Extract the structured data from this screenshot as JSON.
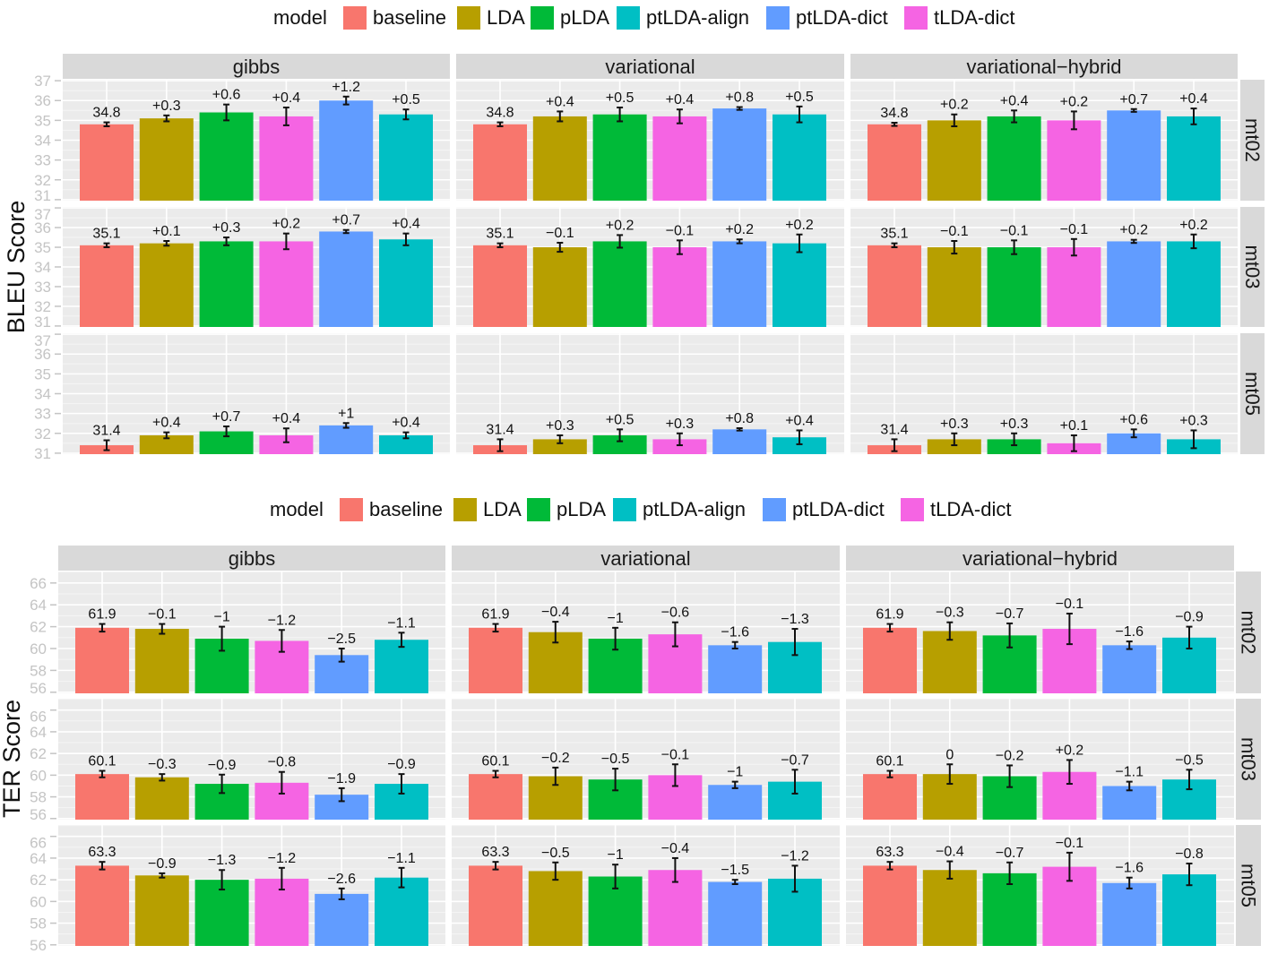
{
  "chart_data": [
    {
      "type": "bar",
      "ylabel": "BLEU Score",
      "ylim": [
        30.95,
        37.05
      ],
      "yticks": [
        31,
        32,
        33,
        34,
        35,
        36,
        37
      ],
      "grid": true,
      "legend": {
        "title": "model",
        "placement": "top",
        "entries": [
          "baseline",
          "LDA",
          "pLDA",
          "ptLDA-align",
          "ptLDA-dict",
          "tLDA-dict"
        ]
      },
      "colors": {
        "baseline": "#F8766D",
        "LDA": "#B79F00",
        "pLDA": "#00BA38",
        "ptLDA-align": "#00BFC4",
        "ptLDA-dict": "#619CFF",
        "tLDA-dict": "#F564E3"
      },
      "x_order": [
        "baseline",
        "LDA",
        "pLDA",
        "tLDA-dict",
        "ptLDA-dict",
        "ptLDA-align"
      ],
      "columns": [
        "gibbs",
        "variational",
        "variational−hybrid"
      ],
      "rows": [
        "mt02",
        "mt03",
        "mt05"
      ],
      "panels": [
        {
          "column": 0,
          "row": 0,
          "values": [
            34.8,
            35.1,
            35.4,
            35.2,
            36.0,
            35.3
          ],
          "errors": [
            0.1,
            0.15,
            0.4,
            0.45,
            0.2,
            0.25
          ],
          "labels": [
            "34.8",
            "+0.3",
            "+0.6",
            "+0.4",
            "+1.2",
            "+0.5"
          ]
        },
        {
          "column": 1,
          "row": 0,
          "values": [
            34.8,
            35.2,
            35.3,
            35.2,
            35.6,
            35.3
          ],
          "errors": [
            0.1,
            0.25,
            0.35,
            0.35,
            0.07,
            0.4
          ],
          "labels": [
            "34.8",
            "+0.4",
            "+0.5",
            "+0.4",
            "+0.8",
            "+0.5"
          ]
        },
        {
          "column": 2,
          "row": 0,
          "values": [
            34.8,
            35.0,
            35.2,
            35.0,
            35.5,
            35.2
          ],
          "errors": [
            0.08,
            0.3,
            0.3,
            0.45,
            0.07,
            0.4
          ],
          "labels": [
            "34.8",
            "+0.2",
            "+0.4",
            "+0.2",
            "+0.7",
            "+0.4"
          ]
        },
        {
          "column": 0,
          "row": 1,
          "values": [
            35.1,
            35.2,
            35.3,
            35.3,
            35.8,
            35.4
          ],
          "errors": [
            0.1,
            0.12,
            0.2,
            0.4,
            0.08,
            0.3
          ],
          "labels": [
            "35.1",
            "+0.1",
            "+0.3",
            "+0.2",
            "+0.7",
            "+0.4"
          ]
        },
        {
          "column": 1,
          "row": 1,
          "values": [
            35.1,
            35.0,
            35.3,
            35.0,
            35.3,
            35.2
          ],
          "errors": [
            0.1,
            0.23,
            0.32,
            0.35,
            0.1,
            0.45
          ],
          "labels": [
            "35.1",
            "−0.1",
            "+0.2",
            "−0.1",
            "+0.2",
            "+0.2"
          ]
        },
        {
          "column": 2,
          "row": 1,
          "values": [
            35.1,
            35.0,
            35.0,
            35.0,
            35.3,
            35.3
          ],
          "errors": [
            0.1,
            0.32,
            0.35,
            0.42,
            0.08,
            0.35
          ],
          "labels": [
            "35.1",
            "−0.1",
            "−0.1",
            "−0.1",
            "+0.2",
            "+0.2"
          ]
        },
        {
          "column": 0,
          "row": 2,
          "values": [
            31.4,
            31.9,
            32.1,
            31.9,
            32.4,
            31.9
          ],
          "errors": [
            0.25,
            0.15,
            0.25,
            0.35,
            0.12,
            0.15
          ],
          "labels": [
            "31.4",
            "+0.4",
            "+0.7",
            "+0.4",
            "+1",
            "+0.4"
          ]
        },
        {
          "column": 1,
          "row": 2,
          "values": [
            31.4,
            31.7,
            31.9,
            31.7,
            32.2,
            31.8
          ],
          "errors": [
            0.3,
            0.2,
            0.3,
            0.3,
            0.06,
            0.35
          ],
          "labels": [
            "31.4",
            "+0.3",
            "+0.5",
            "+0.3",
            "+0.8",
            "+0.4"
          ]
        },
        {
          "column": 2,
          "row": 2,
          "values": [
            31.4,
            31.7,
            31.7,
            31.5,
            32.0,
            31.7
          ],
          "errors": [
            0.3,
            0.3,
            0.3,
            0.4,
            0.2,
            0.45
          ],
          "labels": [
            "31.4",
            "+0.3",
            "+0.3",
            "+0.1",
            "+0.6",
            "+0.3"
          ]
        }
      ]
    },
    {
      "type": "bar",
      "ylabel": "TER Score",
      "ylim": [
        55.9,
        67.05
      ],
      "yticks": [
        56,
        58,
        60,
        62,
        64,
        66
      ],
      "grid": true,
      "legend": {
        "title": "model",
        "placement": "top",
        "entries": [
          "baseline",
          "LDA",
          "pLDA",
          "ptLDA-align",
          "ptLDA-dict",
          "tLDA-dict"
        ]
      },
      "colors": {
        "baseline": "#F8766D",
        "LDA": "#B79F00",
        "pLDA": "#00BA38",
        "ptLDA-align": "#00BFC4",
        "ptLDA-dict": "#619CFF",
        "tLDA-dict": "#F564E3"
      },
      "x_order": [
        "baseline",
        "LDA",
        "pLDA",
        "tLDA-dict",
        "ptLDA-dict",
        "ptLDA-align"
      ],
      "columns": [
        "gibbs",
        "variational",
        "variational−hybrid"
      ],
      "rows": [
        "mt02",
        "mt03",
        "mt05"
      ],
      "panels": [
        {
          "column": 0,
          "row": 0,
          "values": [
            61.9,
            61.8,
            60.9,
            60.7,
            59.4,
            60.8
          ],
          "errors": [
            0.35,
            0.45,
            1.1,
            1.0,
            0.6,
            0.65
          ],
          "labels": [
            "61.9",
            "−0.1",
            "−1",
            "−1.2",
            "−2.5",
            "−1.1"
          ]
        },
        {
          "column": 1,
          "row": 0,
          "values": [
            61.9,
            61.5,
            60.9,
            61.3,
            60.3,
            60.6
          ],
          "errors": [
            0.35,
            0.95,
            1.0,
            1.1,
            0.3,
            1.2
          ],
          "labels": [
            "61.9",
            "−0.4",
            "−1",
            "−0.6",
            "−1.6",
            "−1.3"
          ]
        },
        {
          "column": 2,
          "row": 0,
          "values": [
            61.9,
            61.6,
            61.2,
            61.8,
            60.3,
            61.0
          ],
          "errors": [
            0.35,
            0.8,
            1.1,
            1.4,
            0.35,
            1.0
          ],
          "labels": [
            "61.9",
            "−0.3",
            "−0.7",
            "−0.1",
            "−1.6",
            "−0.9"
          ]
        },
        {
          "column": 0,
          "row": 1,
          "values": [
            60.1,
            59.8,
            59.2,
            59.3,
            58.2,
            59.2
          ],
          "errors": [
            0.3,
            0.3,
            0.85,
            1.0,
            0.6,
            0.9
          ],
          "labels": [
            "60.1",
            "−0.3",
            "−0.9",
            "−0.8",
            "−1.9",
            "−0.9"
          ]
        },
        {
          "column": 1,
          "row": 1,
          "values": [
            60.1,
            59.9,
            59.6,
            60.0,
            59.1,
            59.4
          ],
          "errors": [
            0.3,
            0.8,
            1.0,
            1.0,
            0.3,
            1.1
          ],
          "labels": [
            "60.1",
            "−0.2",
            "−0.5",
            "−0.1",
            "−1",
            "−0.7"
          ]
        },
        {
          "column": 2,
          "row": 1,
          "values": [
            60.1,
            60.1,
            59.9,
            60.3,
            59.0,
            59.6
          ],
          "errors": [
            0.3,
            0.9,
            1.0,
            1.1,
            0.4,
            0.9
          ],
          "labels": [
            "60.1",
            "0",
            "−0.2",
            "+0.2",
            "−1.1",
            "−0.5"
          ]
        },
        {
          "column": 0,
          "row": 2,
          "values": [
            63.3,
            62.4,
            62.0,
            62.1,
            60.7,
            62.2
          ],
          "errors": [
            0.35,
            0.2,
            0.9,
            1.0,
            0.5,
            0.9
          ],
          "labels": [
            "63.3",
            "−0.9",
            "−1.3",
            "−1.2",
            "−2.6",
            "−1.1"
          ]
        },
        {
          "column": 1,
          "row": 2,
          "values": [
            63.3,
            62.8,
            62.3,
            62.9,
            61.8,
            62.1
          ],
          "errors": [
            0.35,
            0.8,
            1.1,
            1.1,
            0.2,
            1.2
          ],
          "labels": [
            "63.3",
            "−0.5",
            "−1",
            "−0.4",
            "−1.5",
            "−1.2"
          ]
        },
        {
          "column": 2,
          "row": 2,
          "values": [
            63.3,
            62.9,
            62.6,
            63.2,
            61.7,
            62.5
          ],
          "errors": [
            0.35,
            0.8,
            1.0,
            1.3,
            0.5,
            1.0
          ],
          "labels": [
            "63.3",
            "−0.4",
            "−0.7",
            "−0.1",
            "−1.6",
            "−0.8"
          ]
        }
      ]
    }
  ]
}
